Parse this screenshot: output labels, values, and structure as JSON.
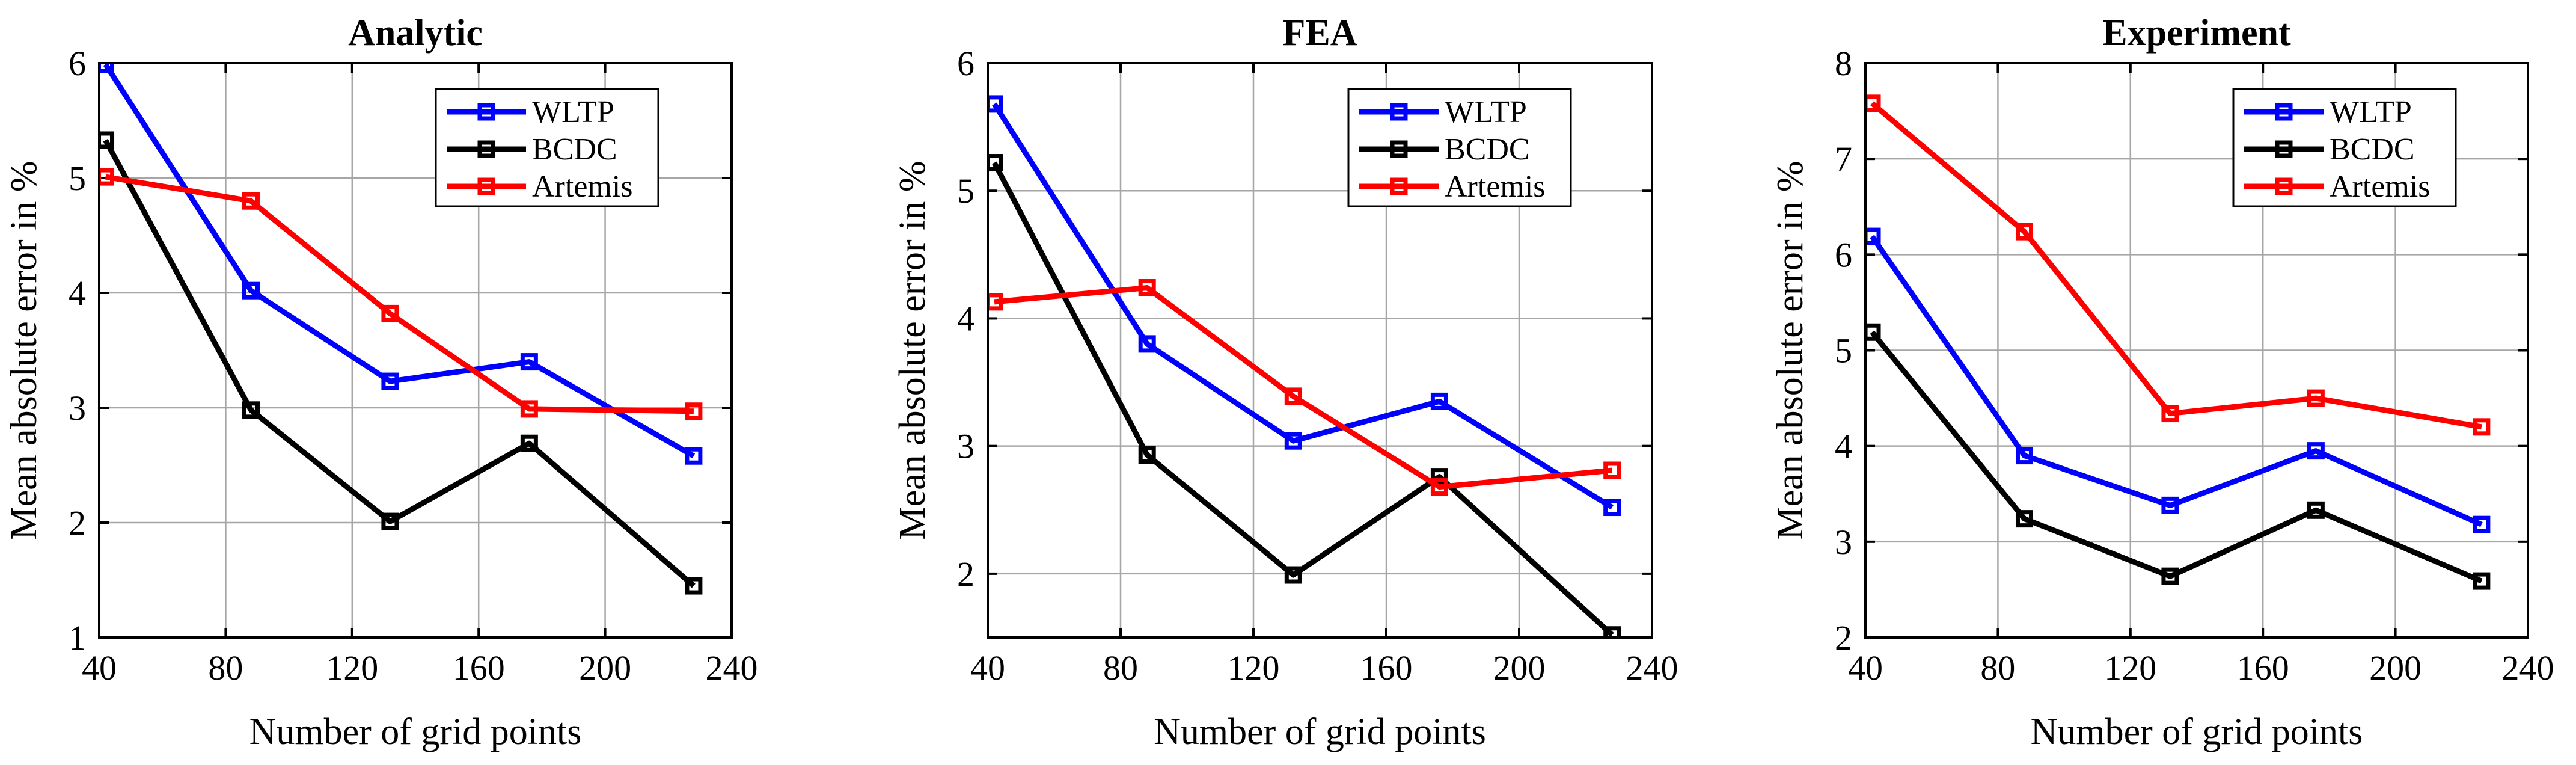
{
  "chart_data": [
    {
      "type": "line",
      "title": "Analytic",
      "xlabel": "Number of grid points",
      "ylabel": "Mean absolute error in %",
      "xlim": [
        40,
        240
      ],
      "ylim": [
        1,
        6
      ],
      "xticks": [
        "40",
        "80",
        "120",
        "160",
        "200",
        "240"
      ],
      "yticks": [
        "1",
        "2",
        "3",
        "4",
        "5",
        "6"
      ],
      "grid": true,
      "legend_position": "top-right",
      "x": [
        42,
        88,
        132,
        176,
        228
      ],
      "series": [
        {
          "name": "WLTP",
          "color": "#0000ff",
          "values": [
            5.99,
            4.02,
            3.23,
            3.4,
            2.58
          ]
        },
        {
          "name": "BCDC",
          "color": "#000000",
          "values": [
            5.33,
            2.98,
            2.01,
            2.69,
            1.45
          ]
        },
        {
          "name": "Artemis",
          "color": "#ff0000",
          "values": [
            5.01,
            4.8,
            3.82,
            2.99,
            2.97
          ]
        }
      ]
    },
    {
      "type": "line",
      "title": "FEA",
      "xlabel": "Number of grid points",
      "ylabel": "Mean absolute error in %",
      "xlim": [
        40,
        240
      ],
      "ylim": [
        1.5,
        6
      ],
      "xticks": [
        "40",
        "80",
        "120",
        "160",
        "200",
        "240"
      ],
      "yticks": [
        "2",
        "3",
        "4",
        "5",
        "6"
      ],
      "grid": true,
      "legend_position": "top-right",
      "x": [
        42,
        88,
        132,
        176,
        228
      ],
      "series": [
        {
          "name": "WLTP",
          "color": "#0000ff",
          "values": [
            5.68,
            3.8,
            3.04,
            3.35,
            2.52
          ]
        },
        {
          "name": "BCDC",
          "color": "#000000",
          "values": [
            5.22,
            2.93,
            1.99,
            2.76,
            1.52
          ]
        },
        {
          "name": "Artemis",
          "color": "#ff0000",
          "values": [
            4.13,
            4.24,
            3.39,
            2.68,
            2.81
          ]
        }
      ]
    },
    {
      "type": "line",
      "title": "Experiment",
      "xlabel": "Number of grid points",
      "ylabel": "Mean absolute error in %",
      "xlim": [
        40,
        240
      ],
      "ylim": [
        2,
        8
      ],
      "xticks": [
        "40",
        "80",
        "120",
        "160",
        "200",
        "240"
      ],
      "yticks": [
        "2",
        "3",
        "4",
        "5",
        "6",
        "7",
        "8"
      ],
      "grid": true,
      "legend_position": "top-right",
      "x": [
        42,
        88,
        132,
        176,
        226
      ],
      "series": [
        {
          "name": "WLTP",
          "color": "#0000ff",
          "values": [
            6.19,
            3.9,
            3.38,
            3.95,
            3.18
          ]
        },
        {
          "name": "BCDC",
          "color": "#000000",
          "values": [
            5.19,
            3.24,
            2.64,
            3.33,
            2.59
          ]
        },
        {
          "name": "Artemis",
          "color": "#ff0000",
          "values": [
            7.58,
            6.24,
            4.34,
            4.5,
            4.2
          ]
        }
      ]
    }
  ]
}
